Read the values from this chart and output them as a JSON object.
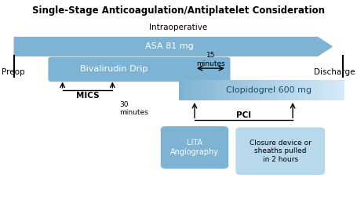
{
  "title": "Single-Stage Anticoagulation/Antiplatelet Consideration",
  "bg_color": "#ffffff",
  "asa_color": "#7fb3d3",
  "biv_color": "#7fb3d3",
  "clop_color_left": "#a8cce0",
  "clop_color_right": "#d6eaf8",
  "lita_color": "#7fb3d3",
  "closure_color": "#b8d8ec",
  "label_intraoperative": "Intraoperative",
  "label_asa": "ASA 81 mg",
  "label_bivalirudin": "Bivalirudin Drip",
  "label_15min": "15\nminutes",
  "label_clopidogrel": "Clopidogrel 600 mg",
  "label_mics": "MICS",
  "label_30min": "30\nminutes",
  "label_pci": "PCI",
  "label_lita": "LITA\nAngiography",
  "label_closure": "Closure device or\nsheaths pulled\nin 2 hours",
  "label_preop": "Preop",
  "label_discharge": "Discharge"
}
